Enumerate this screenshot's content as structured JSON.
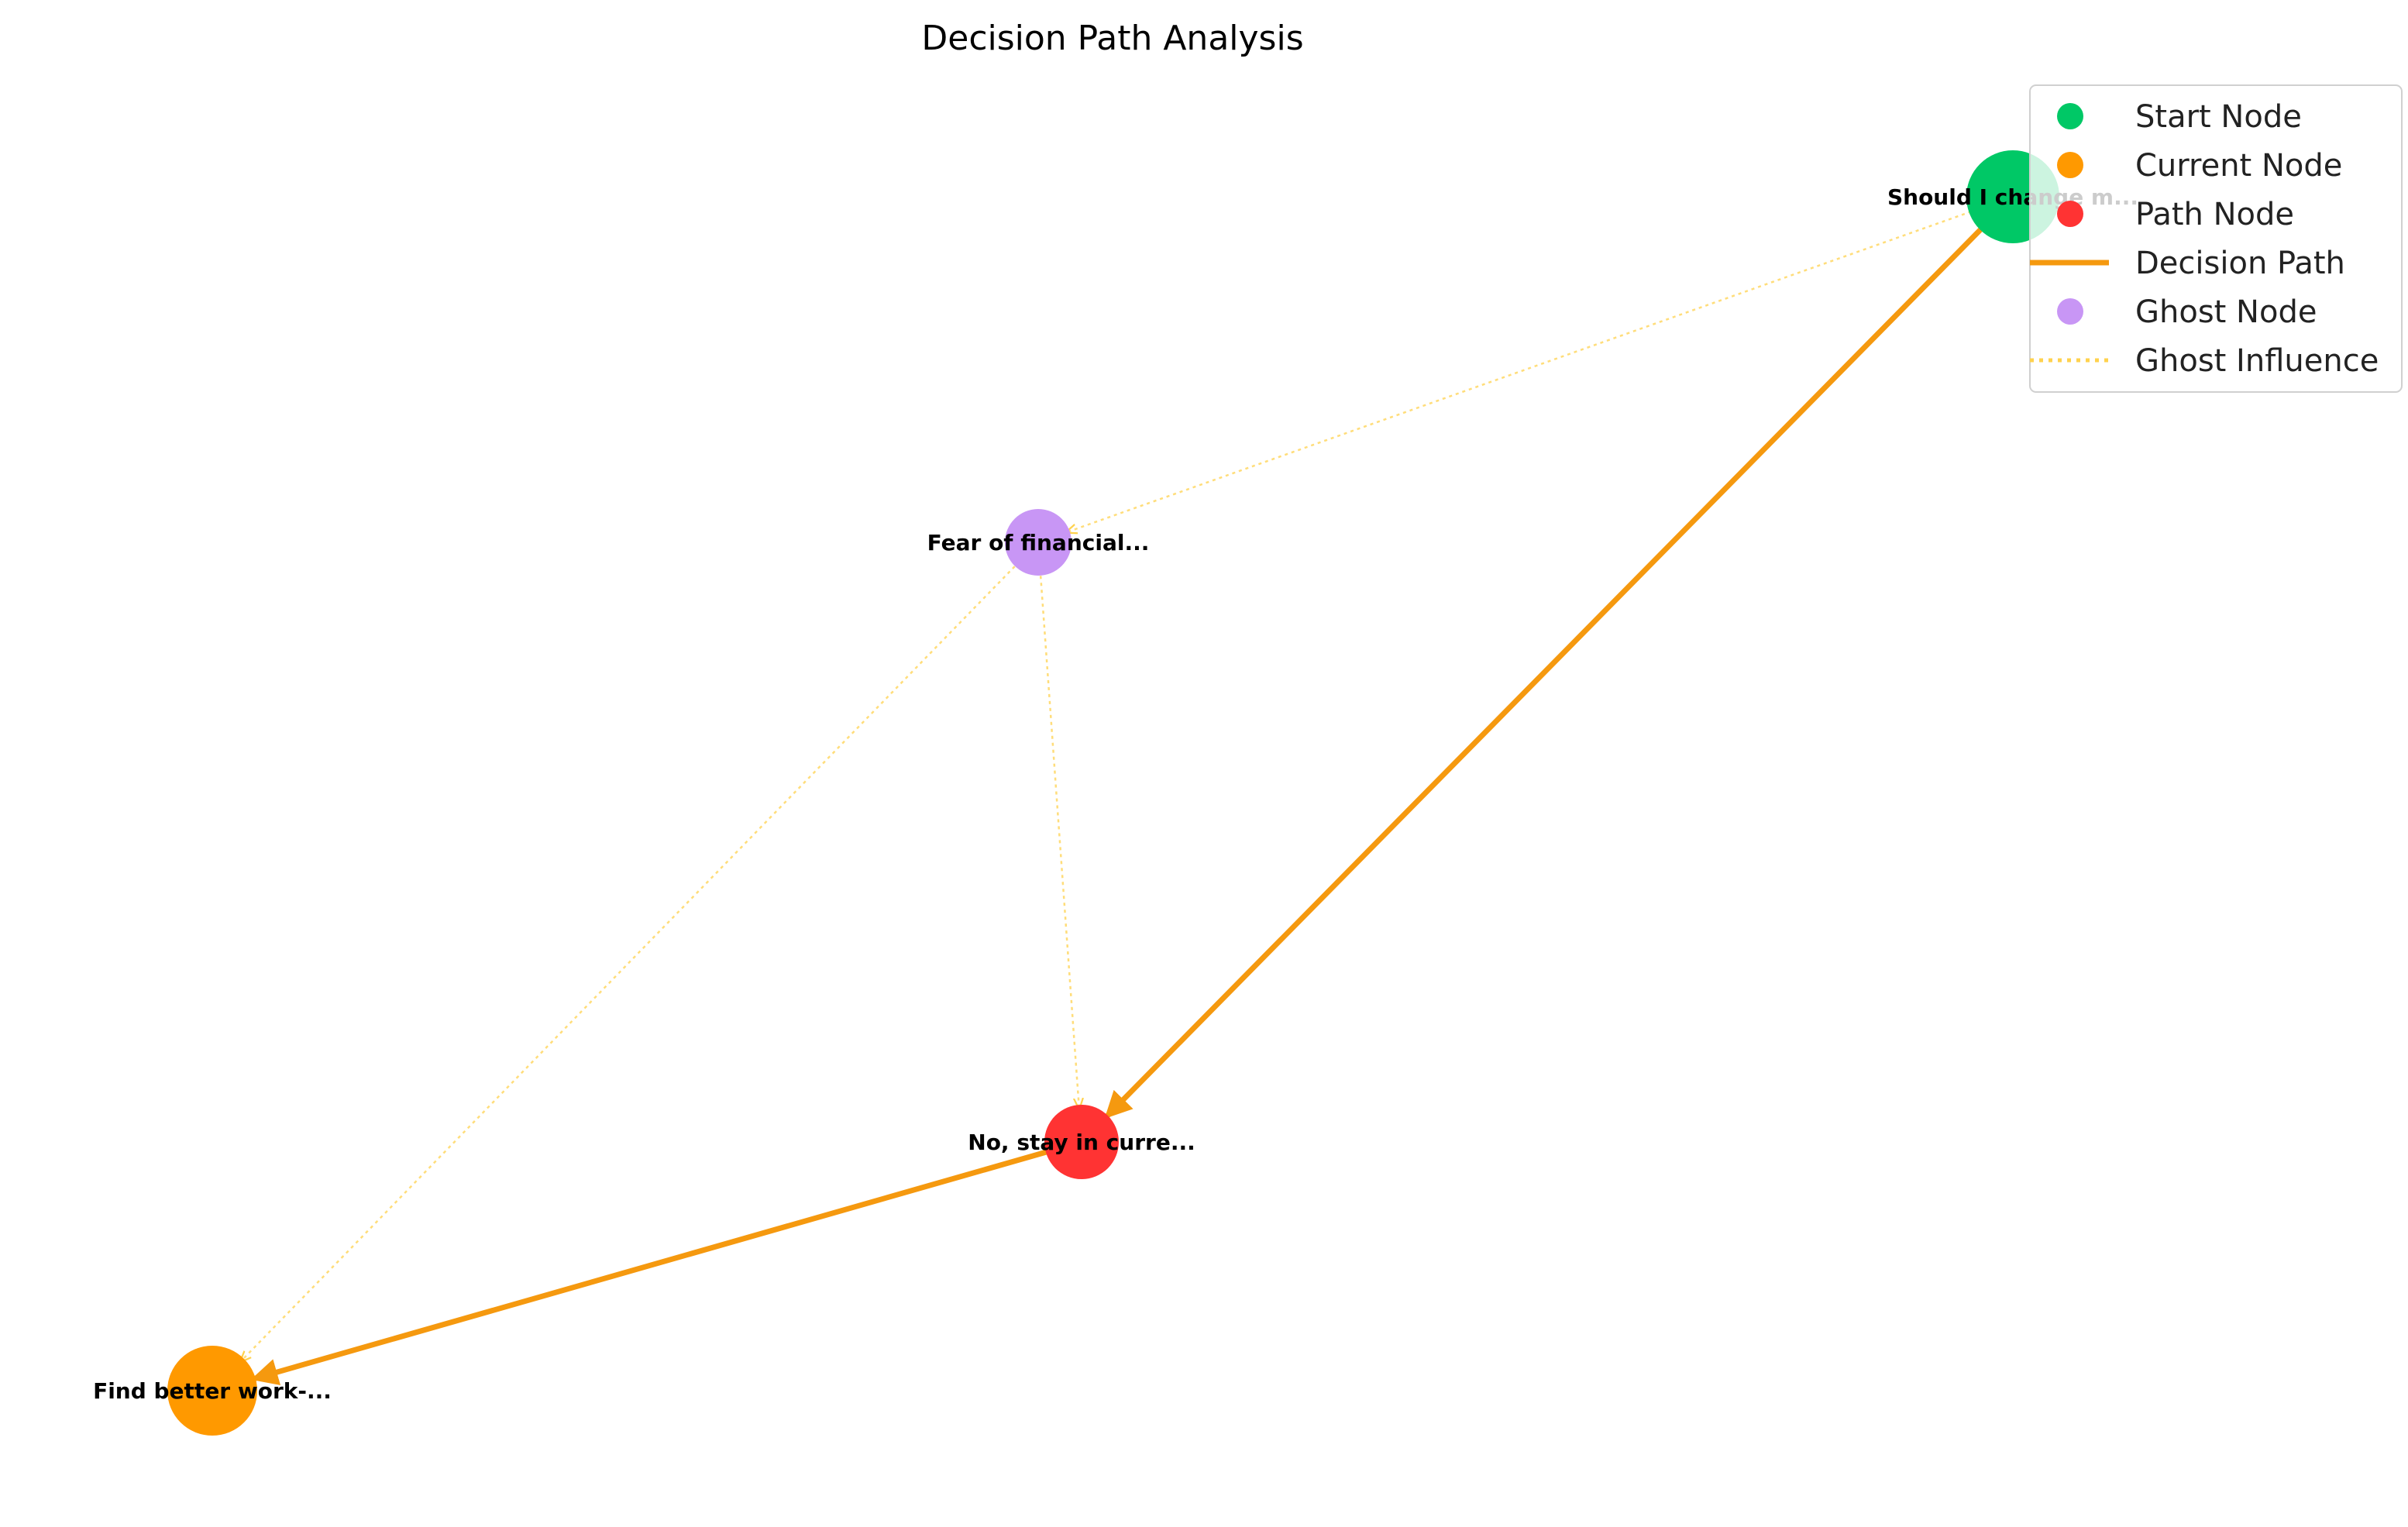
{
  "title": "Decision Path Analysis",
  "colors": {
    "start": "#00c866",
    "current": "#ff9900",
    "path": "#ff3333",
    "decision_edge": "#f5990f",
    "ghost": "#c896f5",
    "ghost_edge": "#ffd24d"
  },
  "nodes": [
    {
      "id": "start",
      "label": "Should I change m...",
      "kind": "start"
    },
    {
      "id": "ghost",
      "label": "Fear of financial...",
      "kind": "ghost"
    },
    {
      "id": "path",
      "label": "No, stay in curre...",
      "kind": "path"
    },
    {
      "id": "current",
      "label": "Find better work-...",
      "kind": "current"
    }
  ],
  "decision_path": [
    {
      "from": "start",
      "to": "path"
    },
    {
      "from": "path",
      "to": "current"
    }
  ],
  "ghost_influence": [
    {
      "from": "start",
      "to": "ghost"
    },
    {
      "from": "ghost",
      "to": "path"
    },
    {
      "from": "ghost",
      "to": "current"
    }
  ],
  "legend": [
    {
      "label": "Start Node",
      "marker": "circle",
      "color": "#00c866"
    },
    {
      "label": "Current Node",
      "marker": "circle",
      "color": "#ff9900"
    },
    {
      "label": "Path Node",
      "marker": "circle",
      "color": "#ff3333"
    },
    {
      "label": "Decision Path",
      "marker": "solid-line",
      "color": "#f5990f"
    },
    {
      "label": "Ghost Node",
      "marker": "circle",
      "color": "#c896f5"
    },
    {
      "label": "Ghost Influence",
      "marker": "dotted-line",
      "color": "#ffd24d"
    }
  ]
}
